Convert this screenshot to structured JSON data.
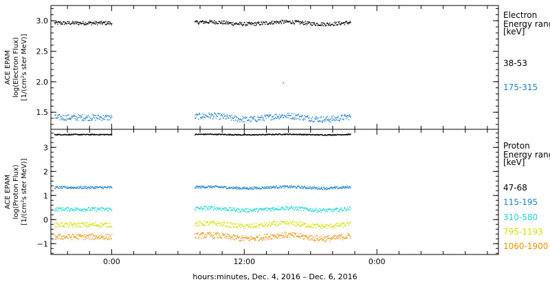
{
  "chart_data": [
    {
      "type": "scatter",
      "ylabel_lines": [
        "ACE EPAM",
        "log(Electron Flux)",
        "[1/(cm²s ster MeV)]"
      ],
      "ylim": [
        1.22,
        3.25
      ],
      "yticks": [
        1.5,
        2.0,
        2.5,
        3.0
      ],
      "ytick_labels": [
        "1.5",
        "2.0",
        "2.5",
        "3.0"
      ],
      "legend_title": [
        "Electron",
        "Energy ranges",
        "[keV]"
      ],
      "series": [
        {
          "name": "38-53",
          "color": "#000000",
          "level": 2.97,
          "jitter": 0.03
        },
        {
          "name": "175-315",
          "color": "#1a7fd0",
          "level": 1.42,
          "jitter": 0.05
        }
      ],
      "outliers": [
        {
          "series": 1,
          "x": 15.5,
          "y": 1.99
        }
      ]
    },
    {
      "type": "scatter",
      "ylabel_lines": [
        "ACE EPAM",
        "log(Proton Flux)",
        "[1/(cm²s ster MeV)]"
      ],
      "ylim": [
        -1.45,
        3.75
      ],
      "yticks": [
        -1,
        0,
        1,
        2,
        3
      ],
      "ytick_labels": [
        "−1",
        "0",
        "1",
        "2",
        "3"
      ],
      "legend_title": [
        "Proton",
        "Energy ranges",
        "[keV]"
      ],
      "series": [
        {
          "name": "47-68",
          "color": "#000000",
          "level": 3.55,
          "jitter": 0.02
        },
        {
          "name": "115-195",
          "color": "#1a7fd0",
          "level": 1.35,
          "jitter": 0.05
        },
        {
          "name": "310-580",
          "color": "#1ad8d0",
          "level": 0.45,
          "jitter": 0.08
        },
        {
          "name": "795-1193",
          "color": "#d0e000",
          "level": -0.2,
          "jitter": 0.1
        },
        {
          "name": "1060-1900",
          "color": "#f08c00",
          "level": -0.7,
          "jitter": 0.12
        }
      ]
    }
  ],
  "x_axis": {
    "range_hours": [
      -5.5,
      35.0
    ],
    "tick_labels": [
      {
        "hour": 0,
        "label": "0:00"
      },
      {
        "hour": 12,
        "label": "12:00"
      },
      {
        "hour": 24,
        "label": "0:00"
      }
    ],
    "minor_step_hours": 2,
    "data_segments": [
      [
        -5.2,
        0.0
      ],
      [
        7.5,
        21.6
      ]
    ],
    "xlabel": "hours:minutes, Dec.  4, 2016 – Dec.  6, 2016"
  }
}
